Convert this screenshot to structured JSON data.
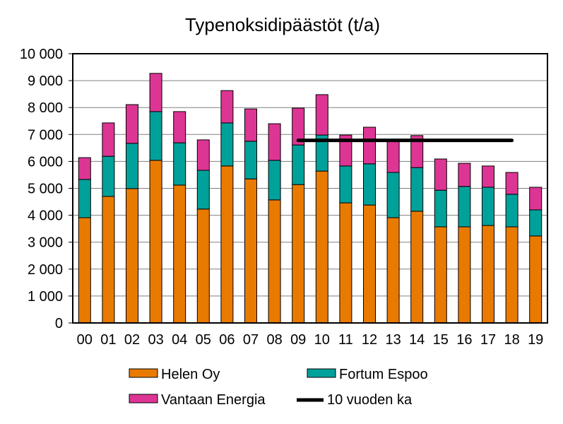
{
  "chart_data": {
    "type": "bar",
    "stacked": true,
    "title": "Typenoksidipäästöt (t/a)",
    "xlabel": "",
    "ylabel": "",
    "ylim": [
      0,
      10000
    ],
    "yticks": [
      0,
      1000,
      2000,
      3000,
      4000,
      5000,
      6000,
      7000,
      8000,
      9000,
      10000
    ],
    "ytick_labels": [
      "0",
      "1 000",
      "2 000",
      "3 000",
      "4 000",
      "5 000",
      "6 000",
      "7 000",
      "8 000",
      "9 000",
      "10 000"
    ],
    "grid": true,
    "categories": [
      "00",
      "01",
      "02",
      "03",
      "04",
      "05",
      "06",
      "07",
      "08",
      "09",
      "10",
      "11",
      "12",
      "13",
      "14",
      "15",
      "16",
      "17",
      "18",
      "19"
    ],
    "series": [
      {
        "name": "Helen Oy",
        "color": "#E97A00",
        "values": [
          3910,
          4700,
          4990,
          6040,
          5120,
          4230,
          5830,
          5350,
          4570,
          5140,
          5640,
          4460,
          4380,
          3910,
          4150,
          3570,
          3570,
          3620,
          3570,
          3230
        ]
      },
      {
        "name": "Fortum Espoo",
        "color": "#00A19A",
        "values": [
          1420,
          1490,
          1680,
          1810,
          1570,
          1440,
          1600,
          1400,
          1470,
          1470,
          1340,
          1370,
          1530,
          1680,
          1620,
          1360,
          1500,
          1420,
          1210,
          970
        ]
      },
      {
        "name": "Vantaan Energia",
        "color": "#DD3594",
        "values": [
          810,
          1240,
          1440,
          1420,
          1160,
          1130,
          1200,
          1200,
          1360,
          1370,
          1500,
          1150,
          1360,
          1210,
          1190,
          1160,
          860,
          790,
          810,
          840
        ]
      }
    ],
    "line": {
      "name": "10 vuoden ka",
      "color": "#000000",
      "value": 6780,
      "from": "09",
      "to": "18"
    },
    "legend": "bottom"
  }
}
